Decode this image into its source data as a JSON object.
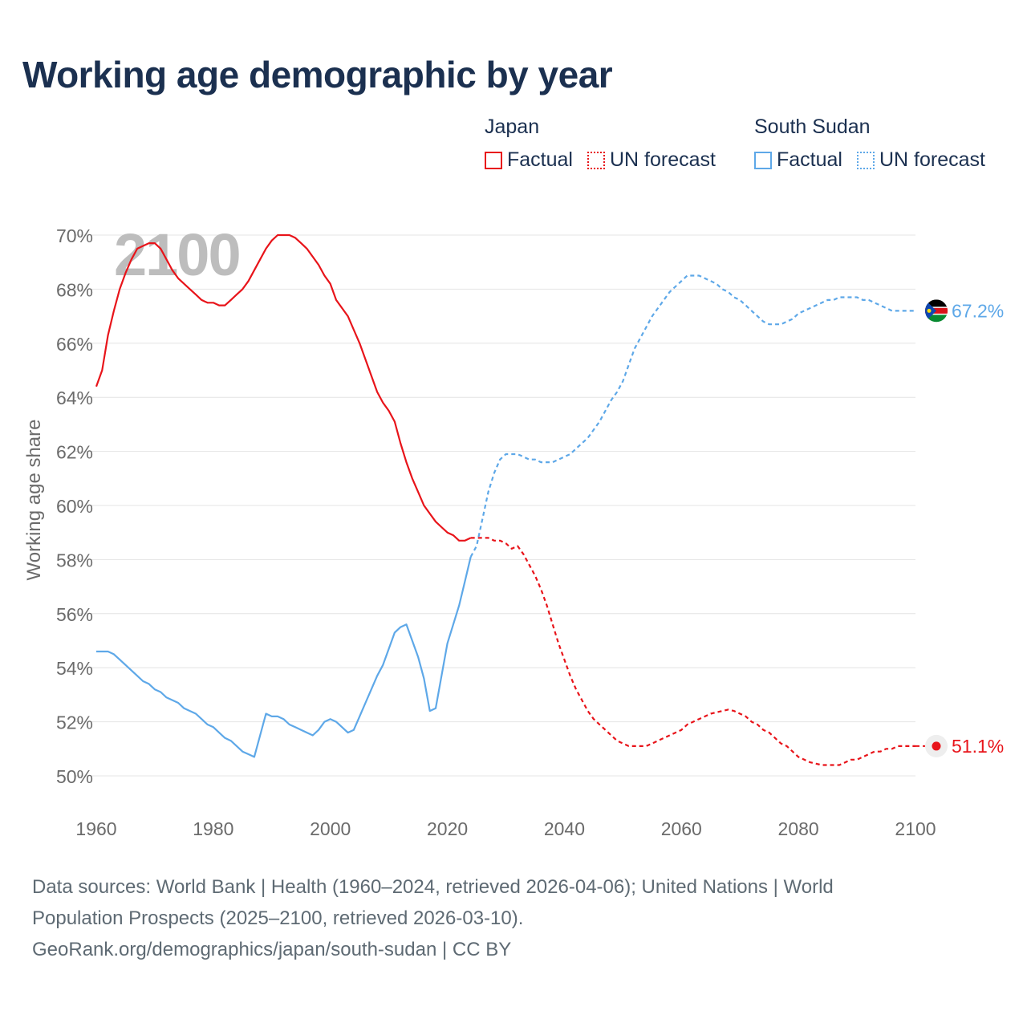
{
  "title": "Working age demographic by year",
  "legend": {
    "groups": [
      {
        "country": "Japan",
        "color": "#e8141a",
        "factual_label": "Factual",
        "forecast_label": "UN forecast"
      },
      {
        "country": "South Sudan",
        "color": "#5ea8e8",
        "factual_label": "Factual",
        "forecast_label": "UN forecast"
      }
    ]
  },
  "year_watermark": "2100",
  "sources": {
    "line1": "Data sources: World Bank | Health (1960–2024, retrieved 2026-04-06); United Nations | World",
    "line2": "Population Prospects (2025–2100, retrieved 2026-03-10).",
    "line3": "GeoRank.org/demographics/japan/south-sudan | CC BY"
  },
  "chart_data": {
    "type": "line",
    "title": "Working age demographic by year",
    "xlabel": "",
    "ylabel": "Working age share",
    "xlim": [
      1960,
      2100
    ],
    "ylim": [
      49,
      70.5
    ],
    "x_ticks": [
      1960,
      1980,
      2000,
      2020,
      2040,
      2060,
      2080,
      2100
    ],
    "y_ticks": [
      50,
      52,
      54,
      56,
      58,
      60,
      62,
      64,
      66,
      68,
      70
    ],
    "y_tick_suffix": "%",
    "grid": true,
    "series": [
      {
        "name": "Japan",
        "color": "#e8141a",
        "end_label": "51.1%",
        "factual": {
          "x": [
            1960,
            1961,
            1962,
            1963,
            1964,
            1965,
            1966,
            1967,
            1968,
            1969,
            1970,
            1971,
            1972,
            1973,
            1974,
            1975,
            1976,
            1977,
            1978,
            1979,
            1980,
            1981,
            1982,
            1983,
            1984,
            1985,
            1986,
            1987,
            1988,
            1989,
            1990,
            1991,
            1992,
            1993,
            1994,
            1995,
            1996,
            1997,
            1998,
            1999,
            2000,
            2001,
            2002,
            2003,
            2004,
            2005,
            2006,
            2007,
            2008,
            2009,
            2010,
            2011,
            2012,
            2013,
            2014,
            2015,
            2016,
            2017,
            2018,
            2019,
            2020,
            2021,
            2022,
            2023,
            2024
          ],
          "y": [
            64.4,
            65.0,
            66.3,
            67.2,
            68.0,
            68.6,
            69.1,
            69.5,
            69.6,
            69.7,
            69.7,
            69.5,
            69.1,
            68.7,
            68.4,
            68.2,
            68.0,
            67.8,
            67.6,
            67.5,
            67.5,
            67.4,
            67.4,
            67.6,
            67.8,
            68.0,
            68.3,
            68.7,
            69.1,
            69.5,
            69.8,
            70.0,
            70.0,
            70.0,
            69.9,
            69.7,
            69.5,
            69.2,
            68.9,
            68.5,
            68.2,
            67.6,
            67.3,
            67.0,
            66.5,
            66.0,
            65.4,
            64.8,
            64.2,
            63.8,
            63.5,
            63.1,
            62.3,
            61.6,
            61.0,
            60.5,
            60.0,
            59.7,
            59.4,
            59.2,
            59.0,
            58.9,
            58.7,
            58.7,
            58.8
          ]
        },
        "forecast": {
          "x": [
            2024,
            2025,
            2026,
            2027,
            2028,
            2029,
            2030,
            2031,
            2032,
            2033,
            2034,
            2035,
            2036,
            2037,
            2038,
            2039,
            2040,
            2041,
            2042,
            2043,
            2044,
            2045,
            2046,
            2047,
            2048,
            2049,
            2050,
            2051,
            2052,
            2053,
            2054,
            2055,
            2056,
            2057,
            2058,
            2059,
            2060,
            2061,
            2062,
            2063,
            2064,
            2065,
            2066,
            2067,
            2068,
            2069,
            2070,
            2071,
            2072,
            2073,
            2074,
            2075,
            2076,
            2077,
            2078,
            2079,
            2080,
            2081,
            2082,
            2083,
            2084,
            2085,
            2086,
            2087,
            2088,
            2089,
            2090,
            2091,
            2092,
            2093,
            2094,
            2095,
            2096,
            2097,
            2098,
            2099,
            2100
          ],
          "y": [
            58.8,
            58.8,
            58.8,
            58.8,
            58.7,
            58.7,
            58.6,
            58.4,
            58.5,
            58.2,
            57.8,
            57.4,
            56.9,
            56.3,
            55.6,
            54.9,
            54.3,
            53.7,
            53.2,
            52.8,
            52.4,
            52.1,
            51.9,
            51.7,
            51.5,
            51.3,
            51.2,
            51.1,
            51.1,
            51.1,
            51.1,
            51.2,
            51.3,
            51.4,
            51.5,
            51.6,
            51.7,
            51.9,
            52.0,
            52.1,
            52.2,
            52.3,
            52.35,
            52.4,
            52.45,
            52.4,
            52.3,
            52.2,
            52.0,
            51.9,
            51.7,
            51.6,
            51.4,
            51.2,
            51.1,
            50.9,
            50.7,
            50.6,
            50.5,
            50.45,
            50.4,
            50.4,
            50.4,
            50.4,
            50.5,
            50.6,
            50.6,
            50.7,
            50.8,
            50.9,
            50.9,
            51.0,
            51.0,
            51.1,
            51.1,
            51.1,
            51.1
          ]
        }
      },
      {
        "name": "South Sudan",
        "color": "#5ea8e8",
        "end_label": "67.2%",
        "factual": {
          "x": [
            1960,
            1961,
            1962,
            1963,
            1964,
            1965,
            1966,
            1967,
            1968,
            1969,
            1970,
            1971,
            1972,
            1973,
            1974,
            1975,
            1976,
            1977,
            1978,
            1979,
            1980,
            1981,
            1982,
            1983,
            1984,
            1985,
            1986,
            1987,
            1988,
            1989,
            1990,
            1991,
            1992,
            1993,
            1994,
            1995,
            1996,
            1997,
            1998,
            1999,
            2000,
            2001,
            2002,
            2003,
            2004,
            2005,
            2006,
            2007,
            2008,
            2009,
            2010,
            2011,
            2012,
            2013,
            2014,
            2015,
            2016,
            2017,
            2018,
            2019,
            2020,
            2021,
            2022,
            2023,
            2024
          ],
          "y": [
            54.6,
            54.6,
            54.6,
            54.5,
            54.3,
            54.1,
            53.9,
            53.7,
            53.5,
            53.4,
            53.2,
            53.1,
            52.9,
            52.8,
            52.7,
            52.5,
            52.4,
            52.3,
            52.1,
            51.9,
            51.8,
            51.6,
            51.4,
            51.3,
            51.1,
            50.9,
            50.8,
            50.7,
            51.5,
            52.3,
            52.2,
            52.2,
            52.1,
            51.9,
            51.8,
            51.7,
            51.6,
            51.5,
            51.7,
            52.0,
            52.1,
            52.0,
            51.8,
            51.6,
            51.7,
            52.2,
            52.7,
            53.2,
            53.7,
            54.1,
            54.7,
            55.3,
            55.5,
            55.6,
            55.0,
            54.4,
            53.6,
            52.4,
            52.5,
            53.7,
            54.9,
            55.6,
            56.3,
            57.2,
            58.1
          ]
        },
        "forecast": {
          "x": [
            2024,
            2025,
            2026,
            2027,
            2028,
            2029,
            2030,
            2031,
            2032,
            2033,
            2034,
            2035,
            2036,
            2037,
            2038,
            2039,
            2040,
            2041,
            2042,
            2043,
            2044,
            2045,
            2046,
            2047,
            2048,
            2049,
            2050,
            2051,
            2052,
            2053,
            2054,
            2055,
            2056,
            2057,
            2058,
            2059,
            2060,
            2061,
            2062,
            2063,
            2064,
            2065,
            2066,
            2067,
            2068,
            2069,
            2070,
            2071,
            2072,
            2073,
            2074,
            2075,
            2076,
            2077,
            2078,
            2079,
            2080,
            2081,
            2082,
            2083,
            2084,
            2085,
            2086,
            2087,
            2088,
            2089,
            2090,
            2091,
            2092,
            2093,
            2094,
            2095,
            2096,
            2097,
            2098,
            2099,
            2100
          ],
          "y": [
            58.1,
            58.5,
            59.5,
            60.5,
            61.2,
            61.7,
            61.9,
            61.9,
            61.9,
            61.8,
            61.7,
            61.7,
            61.6,
            61.6,
            61.6,
            61.7,
            61.8,
            61.9,
            62.1,
            62.3,
            62.5,
            62.8,
            63.1,
            63.5,
            63.9,
            64.2,
            64.6,
            65.2,
            65.8,
            66.2,
            66.6,
            67.0,
            67.3,
            67.6,
            67.9,
            68.1,
            68.3,
            68.5,
            68.5,
            68.5,
            68.4,
            68.3,
            68.2,
            68.0,
            67.9,
            67.7,
            67.6,
            67.4,
            67.2,
            67.0,
            66.8,
            66.7,
            66.7,
            66.7,
            66.8,
            66.9,
            67.1,
            67.2,
            67.3,
            67.4,
            67.5,
            67.6,
            67.6,
            67.7,
            67.7,
            67.7,
            67.7,
            67.6,
            67.6,
            67.5,
            67.4,
            67.3,
            67.2,
            67.2,
            67.2,
            67.2,
            67.2
          ]
        }
      }
    ]
  }
}
